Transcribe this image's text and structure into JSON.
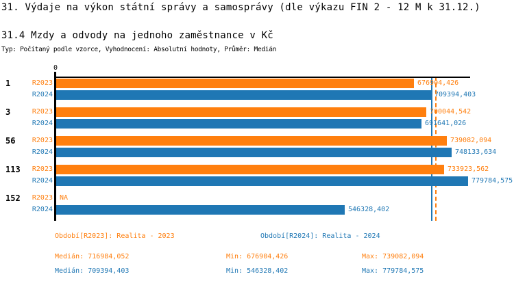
{
  "header": {
    "title": "31. Výdaje na výkon státní správy a samosprávy (dle výkazu FIN 2 - 12 M k 31.12.)",
    "subtitle": "31.4 Mzdy a odvody na jednoho zaměstnance v Kč",
    "meta": "Typ: Počítaný podle vzorce, Vyhodnocení: Absolutní hodnoty, Průměr: Medián"
  },
  "chart_data": {
    "type": "bar",
    "orientation": "horizontal",
    "title": "31.4 Mzdy a odvody na jednoho zaměstnance v Kč",
    "categories": [
      "1",
      "3",
      "56",
      "113",
      "152"
    ],
    "series": [
      {
        "name": "R2023",
        "legend": "Období[R2023]: Realita - 2023",
        "color": "#ff7f0e",
        "values": [
          676904.426,
          700044.542,
          739082.094,
          733923.562,
          null
        ],
        "value_labels": [
          "676904,426",
          "700044,542",
          "739082,094",
          "733923,562",
          "NA"
        ],
        "median": 716984.052,
        "min": 676904.426,
        "max": 739082.094,
        "median_line_style": "dashed"
      },
      {
        "name": "R2024",
        "legend": "Období[R2024]: Realita - 2024",
        "color": "#1f77b4",
        "values": [
          709394.403,
          691641.026,
          748133.634,
          779784.575,
          546328.402
        ],
        "value_labels": [
          "709394,403",
          "691641,026",
          "748133,634",
          "779784,575",
          "546328,402"
        ],
        "median": 709394.403,
        "min": 546328.402,
        "max": 779784.575,
        "median_line_style": "solid"
      }
    ],
    "xlim": [
      0,
      785000
    ],
    "origin_tick_label": "0",
    "grid": false,
    "legend_position": "bottom",
    "missing_value_text": "NA"
  },
  "legend": {
    "r2023": "Období[R2023]: Realita - 2023",
    "r2024": "Období[R2024]: Realita - 2024"
  },
  "stats": {
    "r2023": {
      "median_label": "Medián:",
      "median_value": "716984,052",
      "min_label": "Min:",
      "min_value": "676904,426",
      "max_label": "Max:",
      "max_value": "739082,094"
    },
    "r2024": {
      "median_label": "Medián:",
      "median_value": "709394,403",
      "min_label": "Min:",
      "min_value": "546328,402",
      "max_label": "Max:",
      "max_value": "779784,575"
    }
  },
  "colors": {
    "r2023": "#ff7f0e",
    "r2024": "#1f77b4",
    "axis": "#000000",
    "text": "#000000",
    "background": "#ffffff"
  }
}
